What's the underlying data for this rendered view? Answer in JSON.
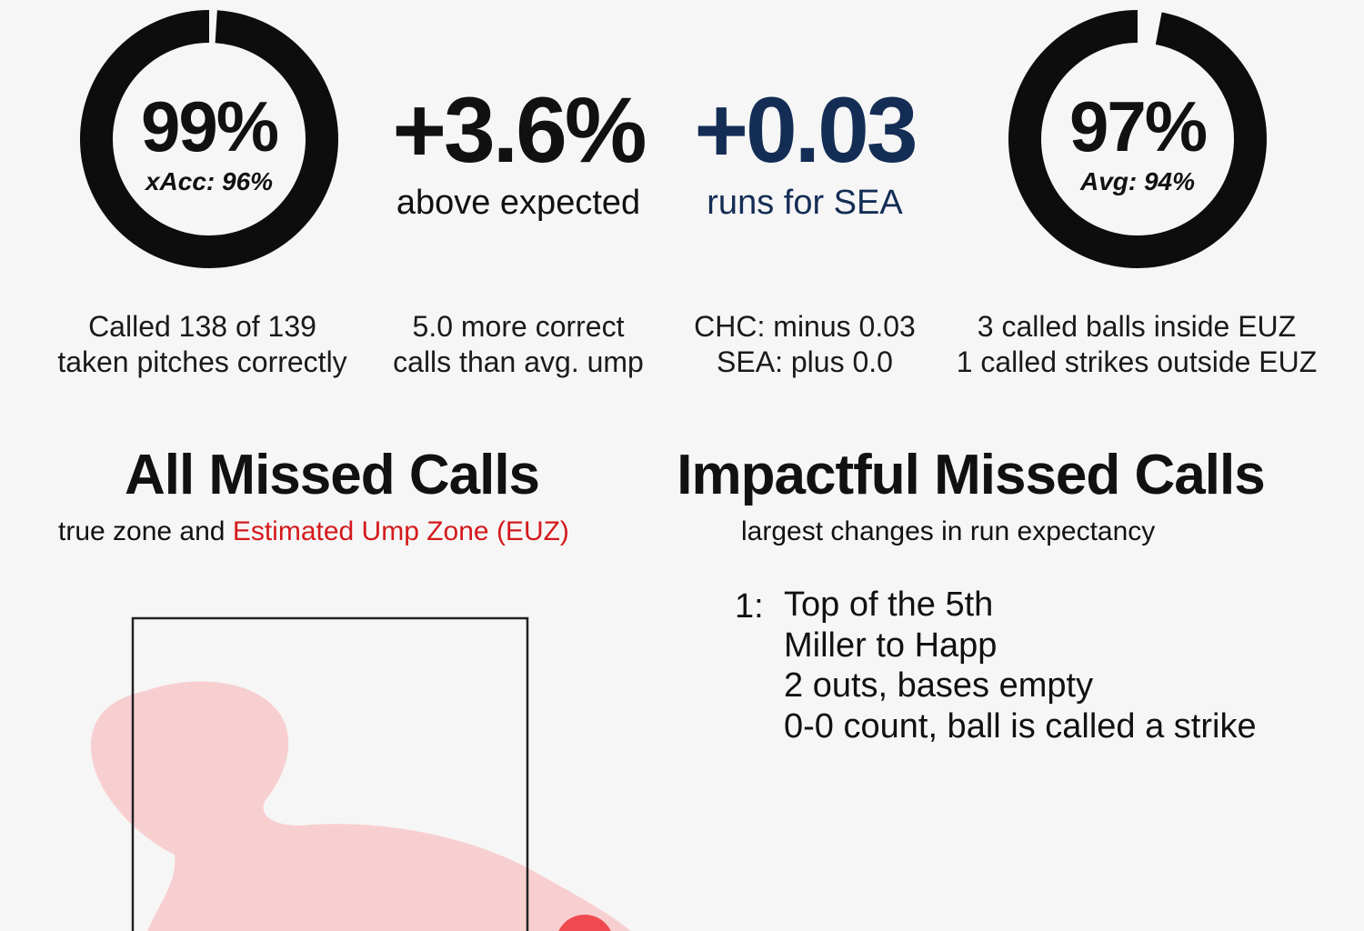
{
  "metrics": {
    "accuracy": {
      "value": "99%",
      "sub": "xAcc: 96%",
      "fraction": 0.99,
      "desc_line1": "Called 138 of 139",
      "desc_line2": "taken pitches correctly"
    },
    "above_expected": {
      "value": "+3.6%",
      "caption": "above expected",
      "desc_line1": "5.0 more correct",
      "desc_line2": "calls than avg. ump"
    },
    "runs": {
      "value": "+0.03",
      "caption": "runs for SEA",
      "desc_line1": "CHC: minus 0.03",
      "desc_line2": "SEA: plus 0.0"
    },
    "consistency": {
      "value": "97%",
      "sub": "Avg: 94%",
      "fraction": 0.97,
      "desc_line1": "3 called balls inside EUZ",
      "desc_line2": "1 called strikes outside EUZ"
    }
  },
  "all_missed": {
    "title": "All Missed Calls",
    "sub_prefix": "true zone and",
    "sub_highlight": "Estimated Ump Zone (EUZ)"
  },
  "impactful": {
    "title": "Impactful Missed Calls",
    "subtitle": "largest changes in run expectancy",
    "calls": [
      {
        "num": "1:",
        "line1": "Top of the 5th",
        "line2": "Miller to Happ",
        "line3": "2 outs, bases empty",
        "line4": "0-0 count, ball is called a strike"
      }
    ]
  },
  "colors": {
    "ring": "#0d0d0d",
    "navy": "#142d55",
    "euz_fill": "#f8cfd0",
    "euz_label": "#d4191c",
    "missed_point": "#ef4a4f"
  }
}
